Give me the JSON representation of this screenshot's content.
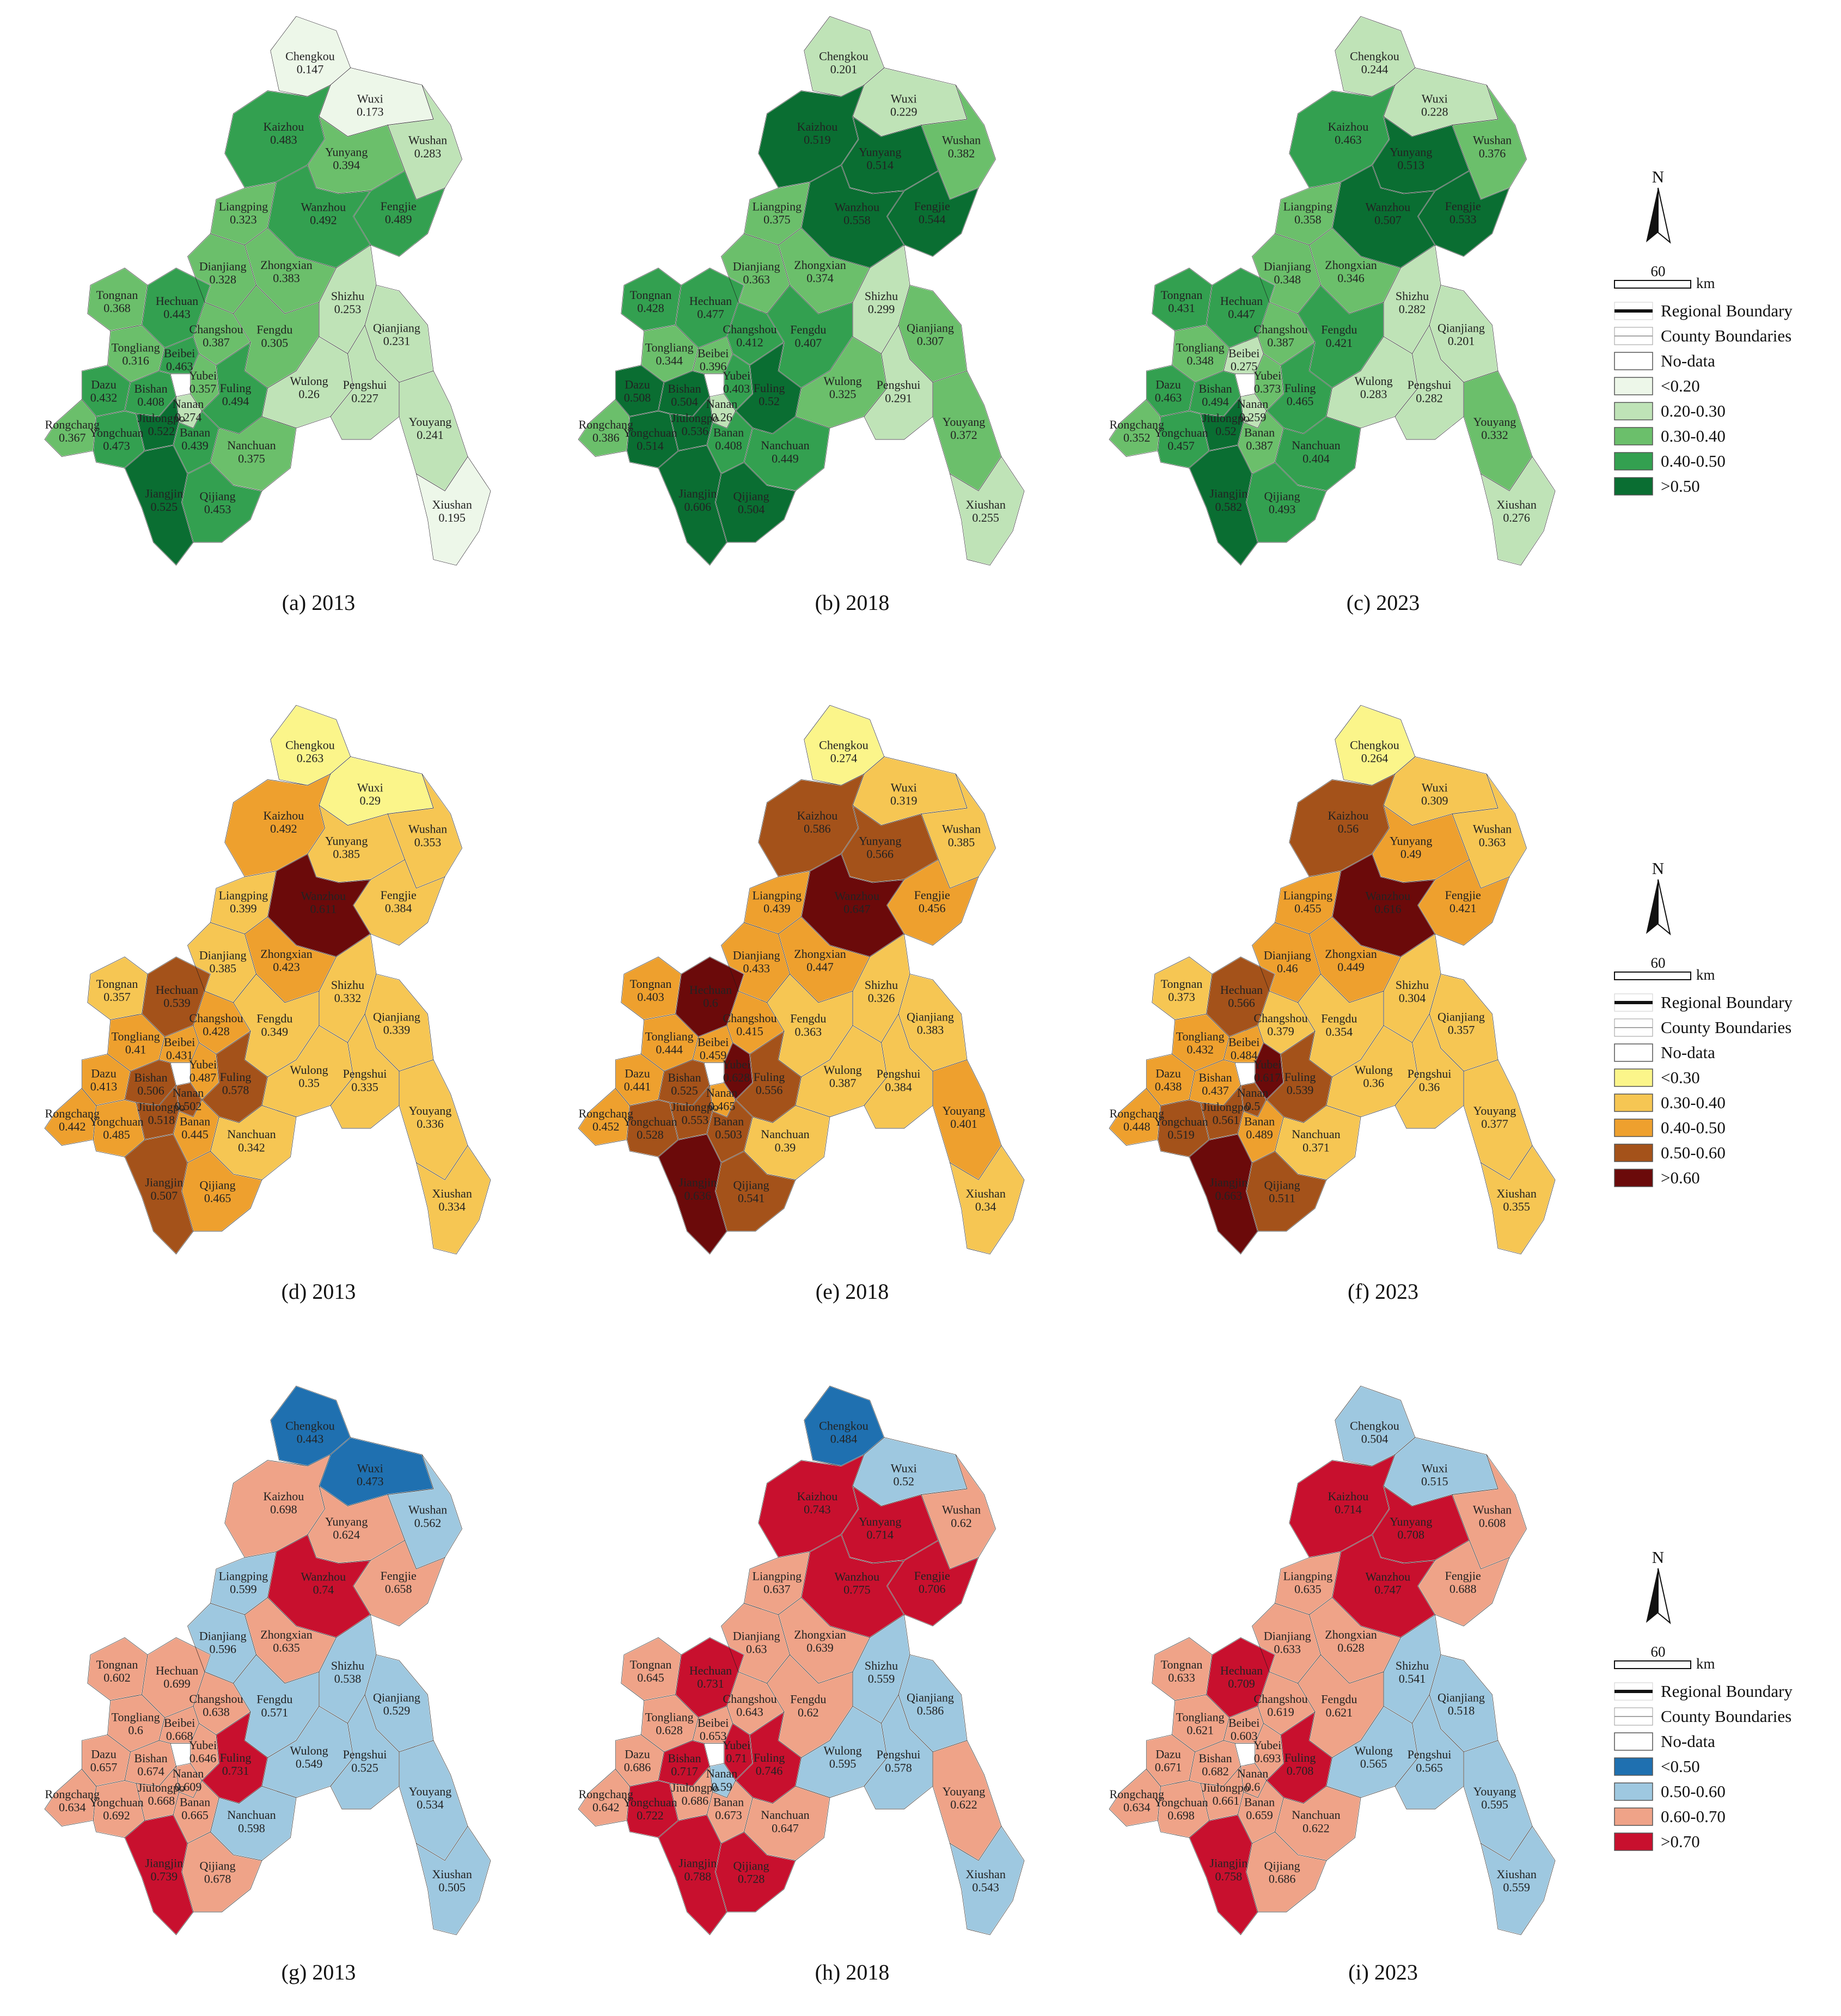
{
  "panels": [
    {
      "label": "(a) 2013",
      "row": 0,
      "year_index": 0
    },
    {
      "label": "(b) 2018",
      "row": 0,
      "year_index": 1
    },
    {
      "label": "(c) 2023",
      "row": 0,
      "year_index": 2
    },
    {
      "label": "(d) 2013",
      "row": 1,
      "year_index": 0
    },
    {
      "label": "(e) 2018",
      "row": 1,
      "year_index": 1
    },
    {
      "label": "(f) 2023",
      "row": 1,
      "year_index": 2
    },
    {
      "label": "(g) 2013",
      "row": 2,
      "year_index": 0
    },
    {
      "label": "(h) 2018",
      "row": 2,
      "year_index": 1
    },
    {
      "label": "(i) 2023",
      "row": 2,
      "year_index": 2
    }
  ],
  "counties": [
    "Chengkou",
    "Wuxi",
    "Kaizhou",
    "Yunyang",
    "Wushan",
    "Fengjie",
    "Wanzhou",
    "Liangping",
    "Zhongxian",
    "Dianjiang",
    "Shizhu",
    "Tongnan",
    "Hechuan",
    "Changshou",
    "Fengdu",
    "Tongliang",
    "Beibei",
    "Yubei",
    "Dazu",
    "Bishan",
    "Nanan",
    "Fuling",
    "Rongchang",
    "Yongchuan",
    "Jiulongpo",
    "Banan",
    "Wulong",
    "Pengshui",
    "Qianjiang",
    "Jiangjin",
    "Nanchuan",
    "Qijiang",
    "Youyang",
    "Xiushan"
  ],
  "rows": [
    {
      "legend": {
        "items": [
          {
            "label": "Regional Boundary",
            "kind": "thick-line"
          },
          {
            "label": "County Boundaries",
            "kind": "thin-line"
          },
          {
            "label": "No-data",
            "kind": "box",
            "color": "#ffffff"
          },
          {
            "label": "<0.20",
            "kind": "box",
            "color": "#edf7e9"
          },
          {
            "label": "0.20-0.30",
            "kind": "box",
            "color": "#bfe3b7"
          },
          {
            "label": "0.30-0.40",
            "kind": "box",
            "color": "#6bbf6b"
          },
          {
            "label": "0.40-0.50",
            "kind": "box",
            "color": "#33a050"
          },
          {
            "label": ">0.50",
            "kind": "box",
            "color": "#0a6e32"
          }
        ],
        "thresholds": [
          0.2,
          0.3,
          0.4,
          0.5
        ],
        "colors": [
          "#edf7e9",
          "#bfe3b7",
          "#6bbf6b",
          "#33a050",
          "#0a6e32"
        ]
      },
      "values": [
        [
          0.147,
          0.173,
          0.483,
          0.394,
          0.283,
          0.489,
          0.492,
          0.323,
          0.383,
          0.328,
          0.253,
          0.368,
          0.443,
          0.387,
          0.305,
          0.316,
          0.463,
          0.357,
          0.432,
          0.408,
          0.274,
          0.494,
          0.367,
          0.473,
          0.522,
          0.439,
          0.26,
          0.227,
          0.231,
          0.525,
          0.375,
          0.453,
          0.241,
          0.195
        ],
        [
          0.201,
          0.229,
          0.519,
          0.514,
          0.382,
          0.544,
          0.558,
          0.375,
          0.374,
          0.363,
          0.299,
          0.428,
          0.477,
          0.412,
          0.407,
          0.344,
          0.396,
          0.403,
          0.508,
          0.504,
          0.26,
          0.52,
          0.386,
          0.514,
          0.536,
          0.408,
          0.325,
          0.291,
          0.307,
          0.606,
          0.449,
          0.504,
          0.372,
          0.255
        ],
        [
          0.244,
          0.228,
          0.463,
          0.513,
          0.376,
          0.533,
          0.507,
          0.358,
          0.346,
          0.348,
          0.282,
          0.431,
          0.447,
          0.387,
          0.421,
          0.348,
          0.275,
          0.373,
          0.463,
          0.494,
          0.259,
          0.465,
          0.352,
          0.457,
          0.52,
          0.387,
          0.283,
          0.282,
          0.201,
          0.582,
          0.404,
          0.493,
          0.332,
          0.276
        ]
      ]
    },
    {
      "legend": {
        "items": [
          {
            "label": "Regional Boundary",
            "kind": "thick-line"
          },
          {
            "label": "County Boundaries",
            "kind": "thin-line"
          },
          {
            "label": "No-data",
            "kind": "box",
            "color": "#ffffff"
          },
          {
            "label": "<0.30",
            "kind": "box",
            "color": "#fbf58a"
          },
          {
            "label": "0.30-0.40",
            "kind": "box",
            "color": "#f6c653"
          },
          {
            "label": "0.40-0.50",
            "kind": "box",
            "color": "#eea02e"
          },
          {
            "label": "0.50-0.60",
            "kind": "box",
            "color": "#a4521a"
          },
          {
            "label": ">0.60",
            "kind": "box",
            "color": "#6b0a0a"
          }
        ],
        "thresholds": [
          0.3,
          0.4,
          0.5,
          0.6
        ],
        "colors": [
          "#fbf58a",
          "#f6c653",
          "#eea02e",
          "#a4521a",
          "#6b0a0a"
        ]
      },
      "values": [
        [
          0.263,
          0.29,
          0.492,
          0.385,
          0.353,
          0.384,
          0.611,
          0.399,
          0.423,
          0.385,
          0.332,
          0.357,
          0.539,
          0.428,
          0.349,
          0.41,
          0.431,
          0.487,
          0.413,
          0.506,
          0.502,
          0.578,
          0.442,
          0.485,
          0.518,
          0.445,
          0.35,
          0.335,
          0.339,
          0.507,
          0.342,
          0.465,
          0.336,
          0.334
        ],
        [
          0.274,
          0.319,
          0.586,
          0.566,
          0.385,
          0.456,
          0.647,
          0.439,
          0.447,
          0.433,
          0.326,
          0.403,
          0.6,
          0.415,
          0.363,
          0.444,
          0.459,
          0.628,
          0.441,
          0.525,
          0.465,
          0.556,
          0.452,
          0.528,
          0.553,
          0.503,
          0.387,
          0.384,
          0.383,
          0.636,
          0.39,
          0.541,
          0.401,
          0.34
        ],
        [
          0.264,
          0.309,
          0.56,
          0.49,
          0.363,
          0.421,
          0.616,
          0.455,
          0.449,
          0.46,
          0.304,
          0.373,
          0.566,
          0.379,
          0.354,
          0.432,
          0.484,
          0.617,
          0.438,
          0.437,
          0.5,
          0.539,
          0.448,
          0.519,
          0.561,
          0.489,
          0.36,
          0.36,
          0.357,
          0.663,
          0.371,
          0.511,
          0.377,
          0.355
        ]
      ]
    },
    {
      "legend": {
        "items": [
          {
            "label": "Regional Boundary",
            "kind": "thick-line"
          },
          {
            "label": "County Boundaries",
            "kind": "thin-line"
          },
          {
            "label": "No-data",
            "kind": "box",
            "color": "#ffffff"
          },
          {
            "label": "<0.50",
            "kind": "box",
            "color": "#1f70b0"
          },
          {
            "label": "0.50-0.60",
            "kind": "box",
            "color": "#9ec8e0"
          },
          {
            "label": "0.60-0.70",
            "kind": "box",
            "color": "#efa388"
          },
          {
            "label": ">0.70",
            "kind": "box",
            "color": "#c8102e"
          }
        ],
        "thresholds": [
          0.5,
          0.6,
          0.7
        ],
        "colors": [
          "#1f70b0",
          "#9ec8e0",
          "#efa388",
          "#c8102e"
        ]
      },
      "values": [
        [
          0.443,
          0.473,
          0.698,
          0.624,
          0.562,
          0.658,
          0.74,
          0.599,
          0.635,
          0.596,
          0.538,
          0.602,
          0.699,
          0.638,
          0.571,
          0.6,
          0.668,
          0.646,
          0.657,
          0.674,
          0.609,
          0.731,
          0.634,
          0.692,
          0.668,
          0.665,
          0.549,
          0.525,
          0.529,
          0.739,
          0.598,
          0.678,
          0.534,
          0.505
        ],
        [
          0.484,
          0.52,
          0.743,
          0.714,
          0.62,
          0.706,
          0.775,
          0.637,
          0.639,
          0.63,
          0.559,
          0.645,
          0.731,
          0.643,
          0.62,
          0.628,
          0.653,
          0.71,
          0.686,
          0.717,
          0.59,
          0.746,
          0.642,
          0.722,
          0.686,
          0.673,
          0.595,
          0.578,
          0.586,
          0.788,
          0.647,
          0.728,
          0.622,
          0.543
        ],
        [
          0.504,
          0.515,
          0.714,
          0.708,
          0.608,
          0.688,
          0.747,
          0.635,
          0.628,
          0.633,
          0.541,
          0.633,
          0.709,
          0.619,
          0.621,
          0.621,
          0.603,
          0.693,
          0.671,
          0.682,
          0.6,
          0.708,
          0.634,
          0.698,
          0.661,
          0.659,
          0.565,
          0.565,
          0.518,
          0.758,
          0.622,
          0.686,
          0.595,
          0.559
        ]
      ]
    }
  ],
  "north_label": "N",
  "scale": {
    "value": "60",
    "unit": "km"
  }
}
